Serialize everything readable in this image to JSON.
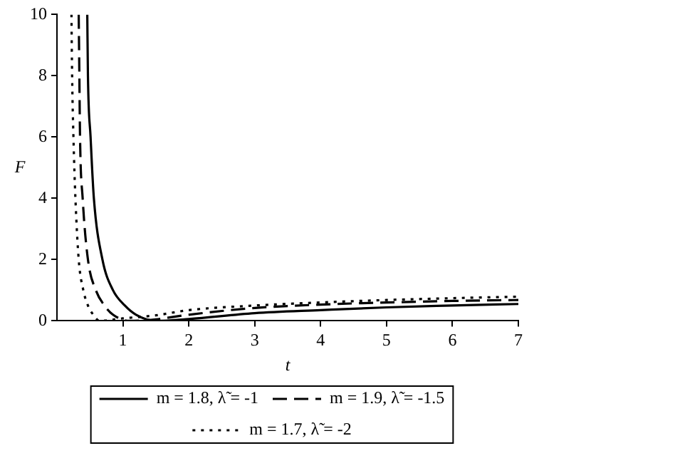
{
  "chart_data": {
    "type": "line",
    "xlabel": "t",
    "ylabel": "F",
    "xlim": [
      0,
      7
    ],
    "xticks": [
      1,
      2,
      3,
      4,
      5,
      6,
      7
    ],
    "ylim": [
      0,
      10
    ],
    "yticks": [
      0,
      2,
      4,
      6,
      8,
      10
    ],
    "grid": false,
    "legend": "bottom",
    "marker": "none",
    "series": [
      {
        "name": "m = 1.8, λ̃ = -1",
        "color": "#000000",
        "line_style": "solid",
        "x": [
          0.46,
          0.47,
          0.51,
          0.56,
          0.69,
          0.85,
          1.03,
          1.2,
          1.5,
          2,
          3,
          4,
          5,
          6,
          7
        ],
        "values": [
          10,
          8,
          6,
          4,
          2,
          1,
          0.5,
          0.2,
          0,
          0.06,
          0.25,
          0.35,
          0.44,
          0.5,
          0.55
        ]
      },
      {
        "name": "m = 1.9, λ̃ = -1.5",
        "color": "#000000",
        "line_style": "dashed",
        "x": [
          0.33,
          0.34,
          0.35,
          0.39,
          0.47,
          0.59,
          0.72,
          0.85,
          1.1,
          1.5,
          2,
          3,
          4,
          5,
          6,
          7
        ],
        "values": [
          10,
          8,
          6,
          4,
          2,
          1,
          0.5,
          0.2,
          0,
          0.05,
          0.2,
          0.42,
          0.53,
          0.6,
          0.65,
          0.68
        ]
      },
      {
        "name": "m = 1.7, λ̃ = -2",
        "color": "#000000",
        "line_style": "dotted",
        "x": [
          0.22,
          0.23,
          0.25,
          0.28,
          0.33,
          0.4,
          0.47,
          0.55,
          0.65,
          1,
          1.5,
          2,
          3,
          4,
          5,
          6,
          7
        ],
        "values": [
          10,
          8,
          6,
          4,
          2,
          1,
          0.5,
          0.2,
          0,
          0.08,
          0.18,
          0.35,
          0.5,
          0.6,
          0.68,
          0.74,
          0.79
        ]
      }
    ]
  }
}
